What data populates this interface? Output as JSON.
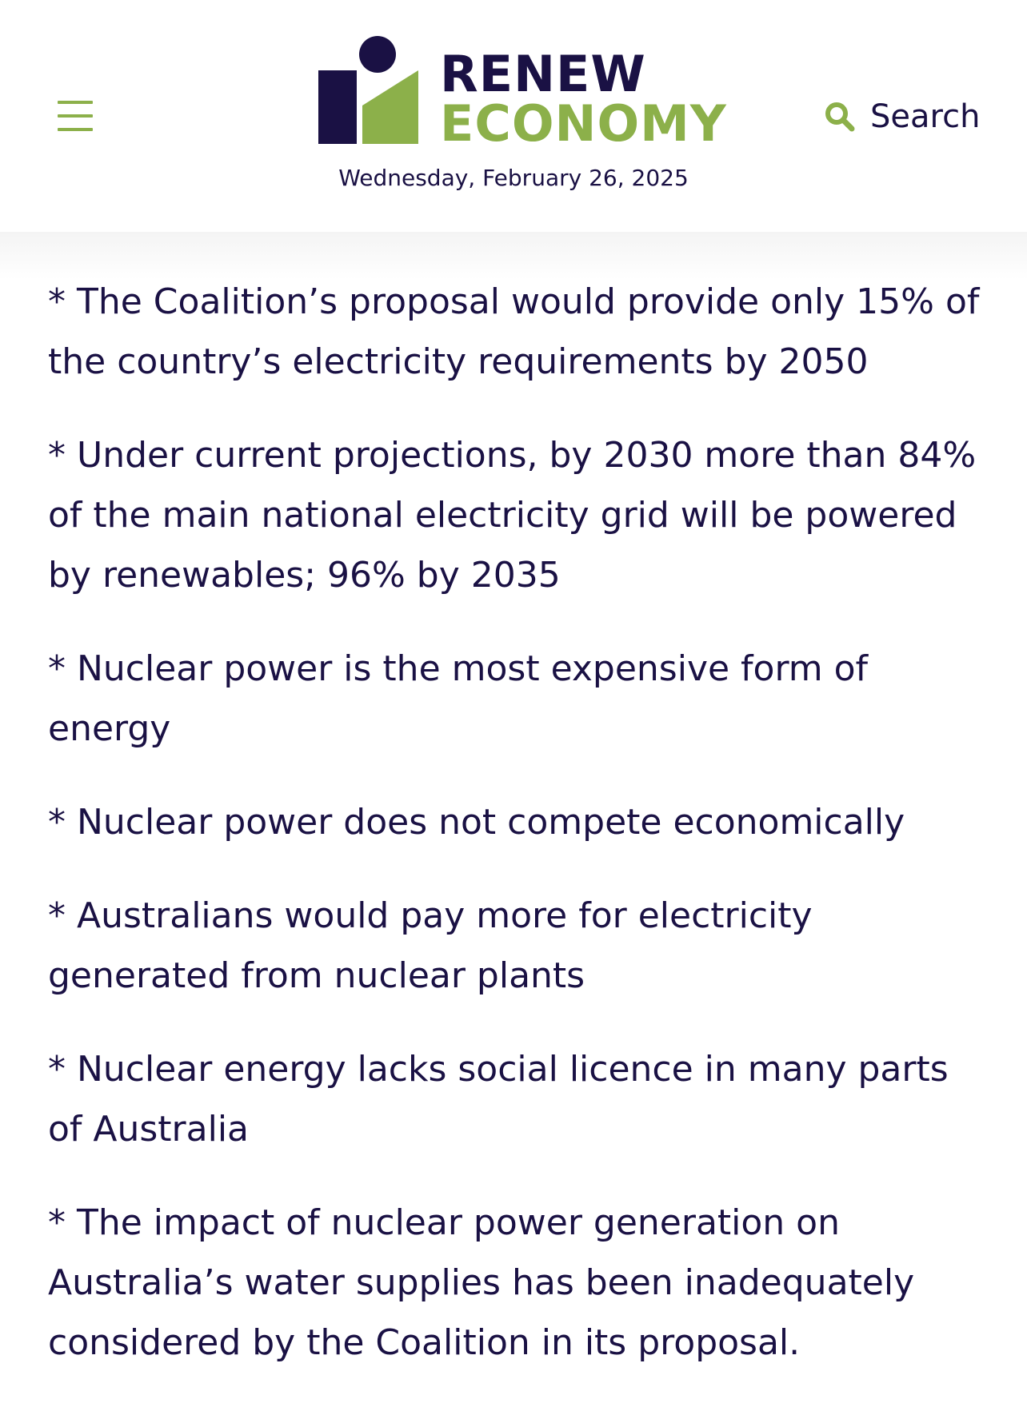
{
  "header": {
    "menu_icon": "hamburger-menu-icon",
    "logo": {
      "line1": "RENEW",
      "line2": "ECONOMY"
    },
    "date": "Wednesday, February 26, 2025",
    "search_label": "Search",
    "search_icon": "search-icon"
  },
  "colors": {
    "navy": "#1a1144",
    "green": "#8cb04a"
  },
  "article": {
    "paragraphs": [
      "* The Coalition’s proposal would provide only 15% of the country’s electricity requirements by 2050",
      "* Under current projections, by 2030 more than 84% of the main national electricity grid will be powered by renewables; 96% by 2035",
      "* Nuclear power is the most expensive form of energy",
      "* Nuclear power does not compete economically",
      "* Australians would pay more for electricity generated from nuclear plants",
      "* Nuclear energy lacks social licence in many parts of Australia",
      "* The impact of nuclear power generation on Australia’s water supplies has been inadequately considered by the Coalition in its proposal."
    ]
  }
}
